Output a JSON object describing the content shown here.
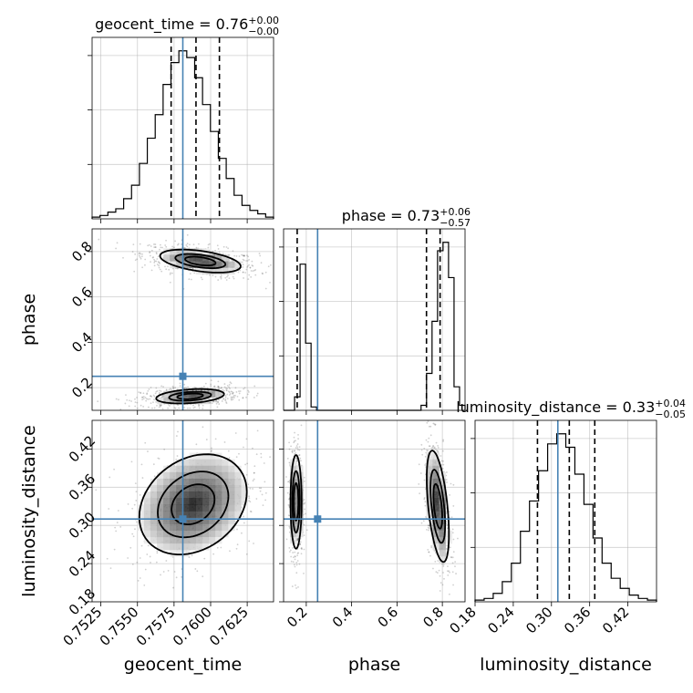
{
  "chart_data": {
    "type": "corner",
    "parameters": [
      {
        "key": "geocent_time",
        "label": "geocent_time",
        "range": [
          0.7519,
          0.7643
        ],
        "ticks": [
          "0.7525",
          "0.7550",
          "0.7575",
          "0.7600",
          "0.7625"
        ],
        "tick_values": [
          0.7525,
          0.755,
          0.7575,
          0.76,
          0.7625
        ],
        "truth": 0.7581,
        "quantiles": [
          0.7573,
          0.759,
          0.7606
        ],
        "title_value": "0.76",
        "title_plus": "+0.00",
        "title_minus": "−0.00",
        "histogram": [
          1,
          2,
          4,
          6,
          12,
          20,
          33,
          48,
          62,
          80,
          93,
          100,
          96,
          84,
          68,
          52,
          36,
          24,
          14,
          8,
          5,
          3,
          1
        ]
      },
      {
        "key": "phase",
        "label": "phase",
        "range": [
          0.1,
          0.9
        ],
        "ticks": [
          "0.2",
          "0.4",
          "0.6",
          "0.8"
        ],
        "tick_values": [
          0.2,
          0.4,
          0.6,
          0.8
        ],
        "truth": 0.25,
        "quantiles": [
          0.16,
          0.73,
          0.79
        ],
        "title_value": "0.73",
        "title_plus": "+0.06",
        "title_minus": "−0.57",
        "histogram": [
          0,
          0,
          8,
          87,
          40,
          2,
          0,
          0,
          0,
          0,
          0,
          0,
          0,
          0,
          0,
          0,
          0,
          0,
          0,
          0,
          0,
          0,
          0,
          0,
          0,
          3,
          22,
          53,
          95,
          100,
          79,
          14,
          3
        ]
      },
      {
        "key": "luminosity_distance",
        "label": "luminosity_distance",
        "range": [
          0.18,
          0.465
        ],
        "ticks": [
          "0.18",
          "0.24",
          "0.30",
          "0.36",
          "0.42"
        ],
        "tick_values": [
          0.18,
          0.24,
          0.3,
          0.36,
          0.42
        ],
        "truth": 0.31,
        "quantiles": [
          0.278,
          0.328,
          0.368
        ],
        "title_value": "0.33",
        "title_plus": "+0.04",
        "title_minus": "−0.05",
        "histogram": [
          1,
          2,
          5,
          12,
          23,
          42,
          60,
          78,
          94,
          100,
          92,
          76,
          58,
          38,
          23,
          14,
          8,
          4,
          2,
          1
        ]
      }
    ],
    "contours": {
      "phase_vs_geocent_time": {
        "modes": [
          {
            "center": [
              0.7593,
              0.758
            ],
            "sd": [
              0.0019,
              0.035
            ],
            "corr": -0.45
          },
          {
            "center": [
              0.7586,
              0.162
            ],
            "sd": [
              0.0016,
              0.022
            ],
            "corr": 0.3
          }
        ],
        "levels": [
          0.55,
          0.9,
          1.45
        ]
      },
      "luminosity_distance_vs_geocent_time": {
        "modes": [
          {
            "center": [
              0.7588,
              0.333
            ],
            "sd": [
              0.0021,
              0.045
            ],
            "corr": 0.25
          }
        ],
        "levels": [
          0.7,
          1.15,
          1.75
        ]
      },
      "luminosity_distance_vs_phase": {
        "modes": [
          {
            "center": [
              0.155,
              0.337
            ],
            "sd": [
              0.014,
              0.042
            ],
            "corr": 0.0
          },
          {
            "center": [
              0.78,
              0.33
            ],
            "sd": [
              0.028,
              0.05
            ],
            "corr": -0.5
          }
        ],
        "levels": [
          0.7,
          1.15,
          1.75
        ]
      }
    },
    "truth_color": "#4682b4",
    "line_color": "#000000",
    "grid": true
  }
}
